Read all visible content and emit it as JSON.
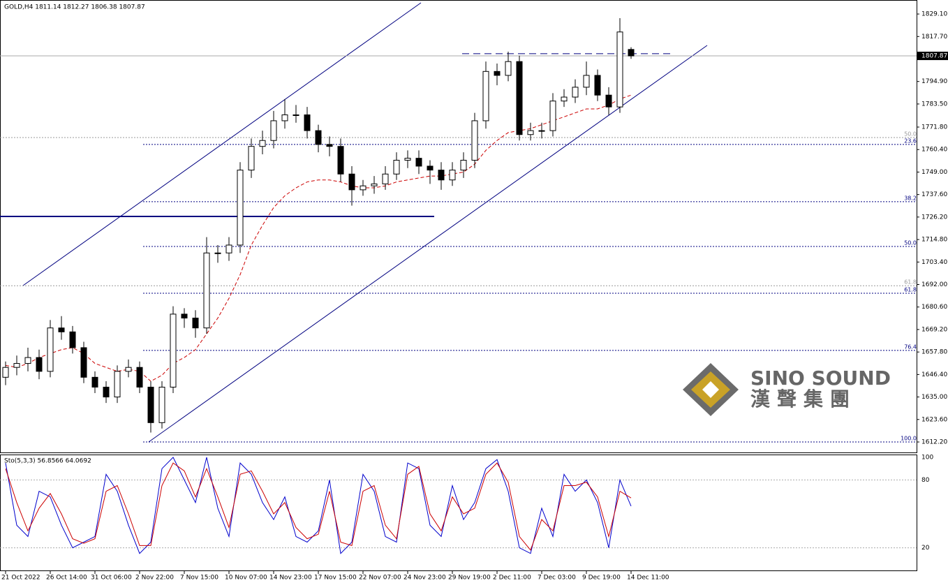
{
  "chart_data": [
    {
      "type": "candlestick",
      "title": "GOLD,H4  1811.14 1812.27 1806.38 1807.87",
      "categories": [
        "21 Oct 2022",
        null,
        null,
        null,
        "26 Oct 14:00",
        null,
        null,
        null,
        "31 Oct 06:00",
        null,
        null,
        null,
        "2 Nov 22:00",
        null,
        null,
        null,
        "7 Nov 15:00",
        null,
        null,
        null,
        "10 Nov 07:00",
        null,
        null,
        null,
        "14 Nov 23:00",
        null,
        null,
        null,
        "17 Nov 15:00",
        null,
        null,
        null,
        "22 Nov 07:00",
        null,
        null,
        null,
        "24 Nov 23:00",
        null,
        null,
        null,
        "29 Nov 19:00",
        null,
        null,
        null,
        "2 Dec 11:00",
        null,
        null,
        null,
        "7 Dec 03:00",
        null,
        null,
        null,
        "9 Dec 19:00",
        null,
        null,
        null,
        "14 Dec 11:00"
      ],
      "open": [
        1645,
        1650,
        1652,
        1655,
        1648,
        1670,
        1668,
        1660,
        1645,
        1640,
        1635,
        1648,
        1650,
        1640,
        1622,
        1640,
        1677,
        1675,
        1670,
        1708,
        1708,
        1712,
        1750,
        1762,
        1765,
        1775,
        1778,
        1778,
        1770,
        1763,
        1762,
        1748,
        1740,
        1742,
        1743,
        1748,
        1755,
        1756,
        1752,
        1750,
        1745,
        1750,
        1755,
        1775,
        1800,
        1798,
        1805,
        1768,
        1770,
        1770,
        1785,
        1787,
        1792,
        1798,
        1788,
        1782,
        1811.14
      ],
      "high": [
        1653,
        1656,
        1660,
        1659,
        1674,
        1676,
        1671,
        1663,
        1648,
        1643,
        1651,
        1654,
        1653,
        1643,
        1643,
        1681,
        1680,
        1679,
        1716,
        1712,
        1716,
        1754,
        1766,
        1770,
        1780,
        1786,
        1783,
        1782,
        1773,
        1767,
        1766,
        1752,
        1745,
        1747,
        1752,
        1759,
        1760,
        1760,
        1755,
        1754,
        1754,
        1759,
        1779,
        1805,
        1804,
        1810,
        1808,
        1774,
        1774,
        1789,
        1791,
        1796,
        1805,
        1801,
        1792,
        1827,
        1812.27
      ],
      "low": [
        1641,
        1646,
        1648,
        1644,
        1645,
        1664,
        1657,
        1642,
        1637,
        1632,
        1632,
        1645,
        1637,
        1617,
        1619,
        1637,
        1670,
        1665,
        1667,
        1703,
        1704,
        1708,
        1746,
        1758,
        1761,
        1771,
        1774,
        1766,
        1759,
        1757,
        1744,
        1732,
        1737,
        1738,
        1740,
        1745,
        1751,
        1748,
        1743,
        1740,
        1742,
        1746,
        1751,
        1771,
        1793,
        1795,
        1765,
        1765,
        1766,
        1767,
        1782,
        1784,
        1788,
        1785,
        1778,
        1779,
        1806.38
      ],
      "close": [
        1650,
        1652,
        1655,
        1648,
        1670,
        1668,
        1660,
        1645,
        1640,
        1635,
        1648,
        1650,
        1640,
        1622,
        1640,
        1677,
        1675,
        1670,
        1708,
        1708,
        1712,
        1750,
        1762,
        1765,
        1775,
        1778,
        1778,
        1770,
        1763,
        1762,
        1748,
        1740,
        1742,
        1743,
        1748,
        1755,
        1756,
        1752,
        1750,
        1745,
        1750,
        1755,
        1775,
        1800,
        1798,
        1805,
        1768,
        1770,
        1770,
        1785,
        1787,
        1792,
        1798,
        1788,
        1782,
        1820,
        1807.87
      ],
      "ma": {
        "color": "#cc0000",
        "values": [
          1651,
          1650,
          1652,
          1655,
          1657,
          1659,
          1660,
          1657,
          1652,
          1650,
          1648,
          1649,
          1648,
          1643,
          1646,
          1652,
          1655,
          1659,
          1667,
          1675,
          1685,
          1697,
          1712,
          1722,
          1731,
          1737,
          1741,
          1744,
          1745,
          1745,
          1744,
          1742,
          1741,
          1741,
          1742,
          1744,
          1745,
          1746,
          1747,
          1747,
          1748,
          1749,
          1753,
          1760,
          1765,
          1769,
          1770,
          1771,
          1773,
          1775,
          1777,
          1779,
          1781,
          1781,
          1783,
          1786,
          1788
        ]
      },
      "current_price": 1807.87,
      "levels": [
        {
          "value": 1726.5,
          "color": "#000080"
        },
        {
          "value": 1809,
          "color": "#000080"
        }
      ],
      "fib": [
        {
          "value": 1766.5,
          "label": "50.0",
          "color": "#999999"
        },
        {
          "value": 1763,
          "label": "23.6",
          "color": "#000080"
        },
        {
          "value": 1734,
          "label": "38.2",
          "color": "#000080"
        },
        {
          "value": 1711.3,
          "label": "50.0",
          "color": "#000080"
        },
        {
          "value": 1691.4,
          "label": "61.8",
          "color": "#999999"
        },
        {
          "value": 1687.6,
          "label": "61.8",
          "color": "#000080"
        },
        {
          "value": 1658.6,
          "label": "76.4",
          "color": "#000080"
        },
        {
          "value": 1612.2,
          "label": "100.0",
          "color": "#000080"
        }
      ],
      "ylim": [
        1606.9,
        1836.2
      ],
      "yticks": [
        {
          "value": 1829.1,
          "label": "1829.10"
        },
        {
          "value": 1817.7,
          "label": "1817.70"
        },
        {
          "value": 1794.9,
          "label": "1794.90"
        },
        {
          "value": 1783.5,
          "label": "1783.50"
        },
        {
          "value": 1771.8,
          "label": "1771.80"
        },
        {
          "value": 1760.4,
          "label": "1760.40"
        },
        {
          "value": 1749,
          "label": "1749.00"
        },
        {
          "value": 1737.6,
          "label": "1737.60"
        },
        {
          "value": 1726.2,
          "label": "1726.20"
        },
        {
          "value": 1714.8,
          "label": "1714.80"
        },
        {
          "value": 1703.4,
          "label": "1703.40"
        },
        {
          "value": 1692,
          "label": "1692.00"
        },
        {
          "value": 1680.6,
          "label": "1680.60"
        },
        {
          "value": 1669.2,
          "label": "1669.20"
        },
        {
          "value": 1657.8,
          "label": "1657.80"
        },
        {
          "value": 1646.4,
          "label": "1646.40"
        },
        {
          "value": 1635,
          "label": "1635.00"
        },
        {
          "value": 1623.6,
          "label": "1623.60"
        },
        {
          "value": 1612.2,
          "label": "1612.20"
        }
      ]
    },
    {
      "type": "line",
      "title": "Sto(5,3,3) 56.8566 64.0692",
      "series": [
        {
          "color": "#0000cc",
          "values": [
            95,
            40,
            30,
            70,
            65,
            40,
            20,
            25,
            30,
            85,
            70,
            40,
            15,
            25,
            90,
            100,
            80,
            60,
            100,
            55,
            30,
            95,
            85,
            60,
            45,
            65,
            30,
            25,
            35,
            80,
            15,
            25,
            85,
            70,
            30,
            25,
            95,
            90,
            40,
            30,
            75,
            45,
            60,
            90,
            98,
            70,
            20,
            15,
            55,
            30,
            85,
            70,
            80,
            60,
            20,
            80,
            56.8566
          ]
        },
        {
          "color": "#cc0000",
          "values": [
            90,
            60,
            35,
            55,
            68,
            50,
            28,
            24,
            28,
            70,
            75,
            50,
            22,
            22,
            75,
            95,
            88,
            65,
            90,
            65,
            38,
            85,
            88,
            70,
            50,
            60,
            38,
            28,
            32,
            70,
            25,
            22,
            70,
            75,
            40,
            28,
            85,
            92,
            50,
            35,
            65,
            50,
            55,
            85,
            95,
            78,
            30,
            18,
            45,
            35,
            75,
            75,
            78,
            65,
            30,
            70,
            64.0692
          ]
        }
      ],
      "ylim": [
        0,
        100
      ],
      "yticks": [
        20,
        80,
        100
      ]
    }
  ],
  "watermark": {
    "name": "SINO SOUND",
    "chinese": "漢聲集團"
  }
}
